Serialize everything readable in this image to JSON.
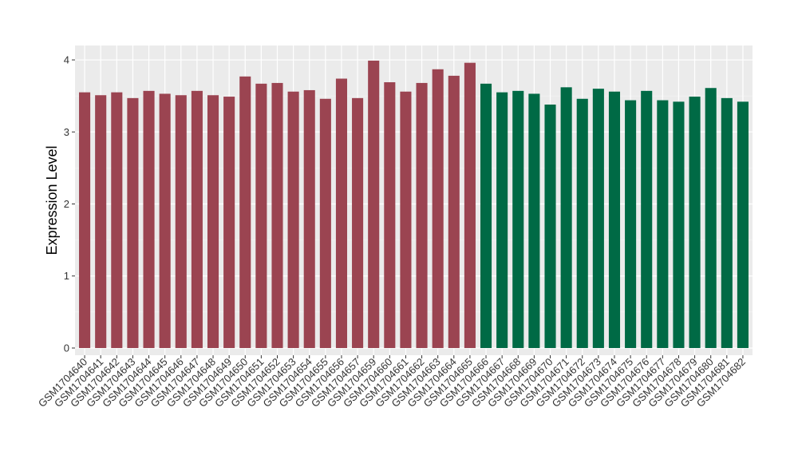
{
  "chart_data": {
    "type": "bar",
    "title": "",
    "xlabel": "",
    "ylabel": "Expression Level",
    "ylim": [
      -0.1,
      4.2
    ],
    "yticks": [
      0,
      1,
      2,
      3,
      4
    ],
    "grid": true,
    "legend": "none",
    "categories": [
      "GSM1704640",
      "GSM1704641",
      "GSM1704642",
      "GSM1704643",
      "GSM1704644",
      "GSM1704645",
      "GSM1704646",
      "GSM1704647",
      "GSM1704648",
      "GSM1704649",
      "GSM1704650",
      "GSM1704651",
      "GSM1704652",
      "GSM1704653",
      "GSM1704654",
      "GSM1704655",
      "GSM1704656",
      "GSM1704657",
      "GSM1704659",
      "GSM1704660",
      "GSM1704661",
      "GSM1704662",
      "GSM1704663",
      "GSM1704664",
      "GSM1704665",
      "GSM1704666",
      "GSM1704667",
      "GSM1704668",
      "GSM1704669",
      "GSM1704670",
      "GSM1704671",
      "GSM1704672",
      "GSM1704673",
      "GSM1704674",
      "GSM1704675",
      "GSM1704676",
      "GSM1704677",
      "GSM1704678",
      "GSM1704679",
      "GSM1704680",
      "GSM1704681",
      "GSM1704682"
    ],
    "values": [
      3.55,
      3.51,
      3.55,
      3.47,
      3.57,
      3.53,
      3.51,
      3.57,
      3.51,
      3.49,
      3.77,
      3.67,
      3.68,
      3.56,
      3.58,
      3.46,
      3.74,
      3.47,
      3.99,
      3.69,
      3.56,
      3.68,
      3.87,
      3.78,
      3.96,
      3.67,
      3.55,
      3.57,
      3.53,
      3.38,
      3.62,
      3.46,
      3.6,
      3.56,
      3.44,
      3.57,
      3.44,
      3.42,
      3.49,
      3.61,
      3.47,
      3.42
    ],
    "groups": [
      0,
      0,
      0,
      0,
      0,
      0,
      0,
      0,
      0,
      0,
      0,
      0,
      0,
      0,
      0,
      0,
      0,
      0,
      0,
      0,
      0,
      0,
      0,
      0,
      0,
      1,
      1,
      1,
      1,
      1,
      1,
      1,
      1,
      1,
      1,
      1,
      1,
      1,
      1,
      1,
      1,
      1
    ],
    "colors": [
      "#9B4451",
      "#006A45"
    ]
  },
  "style": {
    "panel_bg": "#EBEBEB",
    "grid_major": "#FFFFFF",
    "grid_minor": "#F5F5F5",
    "tick_color": "#333333"
  }
}
